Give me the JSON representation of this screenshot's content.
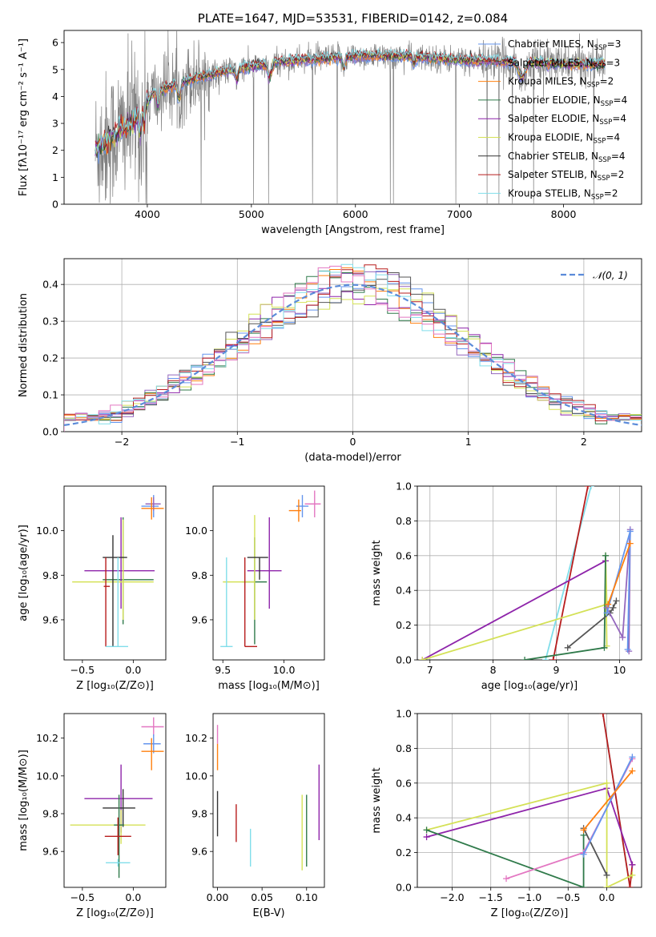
{
  "chart_data": [
    {
      "id": "spectrum",
      "type": "line",
      "title": "PLATE=1647, MJD=53531, FIBERID=0142, z=0.084",
      "xlabel": "wavelength [Angstrom, rest frame]",
      "ylabel": "Flux [fλ10⁻¹⁷ erg cm⁻² s⁻¹ A⁻¹]",
      "xlim": [
        3200,
        8750
      ],
      "ylim": [
        0,
        6.45
      ],
      "xticks": [
        "4000",
        "5000",
        "6000",
        "7000",
        "8000"
      ],
      "yticks": [
        "0",
        "1",
        "2",
        "3",
        "4",
        "5",
        "6"
      ],
      "grid": false,
      "legend_position": "top-right",
      "legend": [
        {
          "label": "Chabrier MILES, N",
          "sub": "SSP",
          "suffix": "=3",
          "color": "#6495ed"
        },
        {
          "label": "Salpeter MILES, N",
          "sub": "SSP",
          "suffix": "=3",
          "color": "#9467bd"
        },
        {
          "label": "Kroupa MILES, N",
          "sub": "SSP",
          "suffix": "=2",
          "color": "#ff7f0e"
        },
        {
          "label": "Chabrier ELODIE, N",
          "sub": "SSP",
          "suffix": "=4",
          "color": "#2f7a4a"
        },
        {
          "label": "Salpeter ELODIE, N",
          "sub": "SSP",
          "suffix": "=4",
          "color": "#8e24aa"
        },
        {
          "label": "Kroupa ELODIE, N",
          "sub": "SSP",
          "suffix": "=4",
          "color": "#d4e157"
        },
        {
          "label": "Chabrier STELIB, N",
          "sub": "SSP",
          "suffix": "=4",
          "color": "#333333"
        },
        {
          "label": "Salpeter STELIB, N",
          "sub": "SSP",
          "suffix": "=2",
          "color": "#b71c1c"
        },
        {
          "label": "Kroupa STELIB, N",
          "sub": "SSP",
          "suffix": "=2",
          "color": "#80deea"
        }
      ],
      "data_color": "#808080",
      "continuum_knots": [
        [
          3500,
          2.0
        ],
        [
          3700,
          2.6
        ],
        [
          3850,
          3.0
        ],
        [
          3950,
          3.5
        ],
        [
          4050,
          4.1
        ],
        [
          4300,
          4.5
        ],
        [
          4700,
          4.9
        ],
        [
          5000,
          5.1
        ],
        [
          5300,
          5.3
        ],
        [
          5700,
          5.4
        ],
        [
          6000,
          5.5
        ],
        [
          6500,
          5.5
        ],
        [
          7000,
          5.35
        ],
        [
          7400,
          5.3
        ],
        [
          8000,
          5.2
        ],
        [
          8400,
          5.2
        ]
      ]
    },
    {
      "id": "residuals",
      "type": "histogram",
      "xlabel": "(data-model)/error",
      "ylabel": "Normed distribution",
      "xlim": [
        -2.5,
        2.5
      ],
      "ylim": [
        0,
        0.47
      ],
      "xticks": [
        "−2",
        "−1",
        "0",
        "1",
        "2"
      ],
      "yticks": [
        "0.0",
        "0.1",
        "0.2",
        "0.3",
        "0.4"
      ],
      "grid": true,
      "legend": [
        {
          "label": "𝒩(0, 1)",
          "color": "#5b8bd9"
        }
      ],
      "bin_edges_range": [
        -2.5,
        2.5
      ],
      "n_bins": 50
    },
    {
      "id": "Z-age",
      "type": "errorbar",
      "xlabel": "Z [log₁₀(Z/Z⊙)]",
      "ylabel": "age  [log₁₀(age/yr)]",
      "xlim": [
        -0.68,
        0.32
      ],
      "ylim": [
        9.42,
        10.2
      ],
      "xticks": [
        "−0.5",
        "0.0"
      ],
      "yticks": [
        "9.6",
        "9.8",
        "10.0"
      ],
      "points": [
        {
          "color": "#6495ed",
          "x": 0.2,
          "y": 10.11,
          "xerr": [
            0.12,
            0.05
          ],
          "yerr": [
            0.05,
            0.05
          ]
        },
        {
          "color": "#9467bd",
          "x": 0.2,
          "y": 10.12,
          "xerr": [
            0.08,
            0.07
          ],
          "yerr": [
            0.03,
            0.03
          ]
        },
        {
          "color": "#ff7f0e",
          "x": 0.18,
          "y": 10.1,
          "xerr": [
            0.1,
            0.12
          ],
          "yerr": [
            0.05,
            0.05
          ]
        },
        {
          "color": "#2f7a4a",
          "x": -0.1,
          "y": 9.78,
          "xerr": [
            0.2,
            0.3
          ],
          "yerr": [
            0.2,
            0.28
          ]
        },
        {
          "color": "#8e24aa",
          "x": -0.12,
          "y": 9.82,
          "xerr": [
            0.36,
            0.33
          ],
          "yerr": [
            0.17,
            0.24
          ]
        },
        {
          "color": "#d4e157",
          "x": -0.1,
          "y": 9.77,
          "xerr": [
            0.5,
            0.3
          ],
          "yerr": [
            0.17,
            0.28
          ]
        },
        {
          "color": "#333333",
          "x": -0.2,
          "y": 9.88,
          "xerr": [
            0.1,
            0.14
          ],
          "yerr": [
            0.4,
            0.1
          ]
        },
        {
          "color": "#b71c1c",
          "x": -0.27,
          "y": 9.75,
          "xerr": [
            0.02,
            0.04
          ],
          "yerr": [
            0.27,
            0.13
          ]
        },
        {
          "color": "#80deea",
          "x": -0.15,
          "y": 9.48,
          "xerr": [
            0.12,
            0.1
          ],
          "yerr": [
            0.0,
            0.4
          ]
        }
      ]
    },
    {
      "id": "mass-age",
      "type": "errorbar",
      "xlabel": "mass [log₁₀(M/M⊙)]",
      "ylabel": "",
      "xlim": [
        9.42,
        10.33
      ],
      "ylim": [
        9.42,
        10.2
      ],
      "xticks": [
        "9.5",
        "10.0"
      ],
      "yticks": [
        "9.6",
        "9.8",
        "10.0"
      ],
      "points": [
        {
          "color": "#6495ed",
          "x": 10.15,
          "y": 10.11,
          "xerr": [
            0.05,
            0.05
          ],
          "yerr": [
            0.05,
            0.05
          ]
        },
        {
          "color": "#e377c2",
          "x": 10.25,
          "y": 10.12,
          "xerr": [
            0.08,
            0.05
          ],
          "yerr": [
            0.06,
            0.06
          ]
        },
        {
          "color": "#ff7f0e",
          "x": 10.12,
          "y": 10.09,
          "xerr": [
            0.08,
            0.02
          ],
          "yerr": [
            0.05,
            0.05
          ]
        },
        {
          "color": "#2f7a4a",
          "x": 9.76,
          "y": 9.77,
          "xerr": [
            0.1,
            0.1
          ],
          "yerr": [
            0.28,
            0.2
          ]
        },
        {
          "color": "#8e24aa",
          "x": 9.88,
          "y": 9.82,
          "xerr": [
            0.18,
            0.1
          ],
          "yerr": [
            0.17,
            0.24
          ]
        },
        {
          "color": "#d4e157",
          "x": 9.76,
          "y": 9.77,
          "xerr": [
            0.26,
            0.0
          ],
          "yerr": [
            0.17,
            0.3
          ]
        },
        {
          "color": "#333333",
          "x": 9.8,
          "y": 9.88,
          "xerr": [
            0.1,
            0.07
          ],
          "yerr": [
            0.1,
            0.0
          ]
        },
        {
          "color": "#b71c1c",
          "x": 9.68,
          "y": 9.48,
          "xerr": [
            0.0,
            0.1
          ],
          "yerr": [
            0.0,
            0.4
          ]
        },
        {
          "color": "#80deea",
          "x": 9.53,
          "y": 9.48,
          "xerr": [
            0.05,
            0.05
          ],
          "yerr": [
            0.0,
            0.4
          ]
        }
      ]
    },
    {
      "id": "age-weight",
      "type": "line",
      "xlabel": "age  [log₁₀(age/yr)]",
      "ylabel": "mass weight",
      "xlim": [
        6.8,
        10.35
      ],
      "ylim": [
        0,
        1.0
      ],
      "xticks": [
        "7",
        "8",
        "9",
        "10"
      ],
      "yticks": [
        "0.0",
        "0.2",
        "0.4",
        "0.6",
        "0.8",
        "1.0"
      ],
      "grid": true,
      "series": [
        {
          "color": "#80deea",
          "points": [
            [
              8.83,
              0.0
            ],
            [
              9.55,
              1.0
            ]
          ]
        },
        {
          "color": "#b71c1c",
          "points": [
            [
              8.95,
              0.0
            ],
            [
              9.5,
              1.0
            ]
          ]
        },
        {
          "color": "#8e24aa",
          "points": [
            [
              6.88,
              0.0
            ],
            [
              9.78,
              0.57
            ]
          ]
        },
        {
          "color": "#d4e157",
          "points": [
            [
              6.88,
              0.0
            ],
            [
              9.8,
              0.32
            ],
            [
              9.78,
              0.6
            ],
            [
              9.8,
              0.08
            ]
          ]
        },
        {
          "color": "#2f7a4a",
          "points": [
            [
              8.5,
              0.0
            ],
            [
              9.76,
              0.07
            ],
            [
              9.78,
              0.6
            ]
          ]
        },
        {
          "color": "#555555",
          "points": [
            [
              9.18,
              0.07
            ],
            [
              9.85,
              0.27
            ],
            [
              9.9,
              0.3
            ],
            [
              9.95,
              0.34
            ]
          ]
        },
        {
          "color": "#9467bd",
          "points": [
            [
              9.8,
              0.3
            ],
            [
              10.05,
              0.13
            ],
            [
              10.17,
              0.75
            ],
            [
              10.15,
              0.05
            ]
          ]
        },
        {
          "color": "#6495ed",
          "points": [
            [
              9.8,
              0.27
            ],
            [
              10.17,
              0.74
            ],
            [
              10.13,
              0.06
            ]
          ]
        },
        {
          "color": "#ff7f0e",
          "points": [
            [
              9.82,
              0.32
            ],
            [
              10.17,
              0.67
            ]
          ]
        }
      ]
    },
    {
      "id": "Z-mass",
      "type": "errorbar",
      "xlabel": "Z [log₁₀(Z/Z⊙)]",
      "ylabel": "mass [log₁₀(M/M⊙)]",
      "xlim": [
        -0.68,
        0.32
      ],
      "ylim": [
        9.41,
        10.33
      ],
      "xticks": [
        "−0.5",
        "0.0"
      ],
      "yticks": [
        "9.6",
        "9.8",
        "10.0",
        "10.2"
      ],
      "points": [
        {
          "color": "#e377c2",
          "x": 0.2,
          "y": 10.26,
          "xerr": [
            0.12,
            0.1
          ],
          "yerr": [
            0.05,
            0.05
          ]
        },
        {
          "color": "#6495ed",
          "x": 0.2,
          "y": 10.17,
          "xerr": [
            0.1,
            0.07
          ],
          "yerr": [
            0.05,
            0.05
          ]
        },
        {
          "color": "#ff7f0e",
          "x": 0.18,
          "y": 10.13,
          "xerr": [
            0.1,
            0.12
          ],
          "yerr": [
            0.1,
            0.07
          ]
        },
        {
          "color": "#8e24aa",
          "x": -0.12,
          "y": 9.88,
          "xerr": [
            0.36,
            0.31
          ],
          "yerr": [
            0.18,
            0.18
          ]
        },
        {
          "color": "#333333",
          "x": -0.1,
          "y": 9.83,
          "xerr": [
            0.2,
            0.12
          ],
          "yerr": [
            0.1,
            0.1
          ]
        },
        {
          "color": "#d4e157",
          "x": -0.12,
          "y": 9.74,
          "xerr": [
            0.5,
            0.24
          ],
          "yerr": [
            0.1,
            0.08
          ]
        },
        {
          "color": "#2f7a4a",
          "x": -0.14,
          "y": 9.74,
          "xerr": [
            0.05,
            0.05
          ],
          "yerr": [
            0.28,
            0.16
          ]
        },
        {
          "color": "#b71c1c",
          "x": -0.15,
          "y": 9.68,
          "xerr": [
            0.13,
            0.13
          ],
          "yerr": [
            0.1,
            0.1
          ]
        },
        {
          "color": "#80deea",
          "x": -0.15,
          "y": 9.54,
          "xerr": [
            0.12,
            0.12
          ],
          "yerr": [
            0.02,
            0.02
          ]
        }
      ]
    },
    {
      "id": "ebv-mass",
      "type": "errorbar",
      "xlabel": "E(B-V)",
      "ylabel": "",
      "xlim": [
        -0.005,
        0.12
      ],
      "ylim": [
        9.41,
        10.33
      ],
      "xticks": [
        "0.00",
        "0.05",
        "0.10"
      ],
      "yticks": [
        "9.6",
        "9.8",
        "10.0",
        "10.2"
      ],
      "points": [
        {
          "color": "#e377c2",
          "x": 0.0,
          "y": 10.22,
          "xerr": [
            0,
            0
          ],
          "yerr": [
            0.05,
            0.05
          ]
        },
        {
          "color": "#ff7f0e",
          "x": 0.0,
          "y": 10.1,
          "xerr": [
            0,
            0
          ],
          "yerr": [
            0.07,
            0.07
          ]
        },
        {
          "color": "#333333",
          "x": 0.0,
          "y": 9.8,
          "xerr": [
            0,
            0
          ],
          "yerr": [
            0.12,
            0.12
          ]
        },
        {
          "color": "#b71c1c",
          "x": 0.021,
          "y": 9.75,
          "xerr": [
            0,
            0
          ],
          "yerr": [
            0.1,
            0.1
          ]
        },
        {
          "color": "#80deea",
          "x": 0.037,
          "y": 9.62,
          "xerr": [
            0,
            0
          ],
          "yerr": [
            0.1,
            0.1
          ]
        },
        {
          "color": "#d4e157",
          "x": 0.095,
          "y": 9.7,
          "xerr": [
            0,
            0
          ],
          "yerr": [
            0.2,
            0.2
          ]
        },
        {
          "color": "#2f7a4a",
          "x": 0.1,
          "y": 9.7,
          "xerr": [
            0,
            0
          ],
          "yerr": [
            0.18,
            0.2
          ]
        },
        {
          "color": "#8e24aa",
          "x": 0.114,
          "y": 9.86,
          "xerr": [
            0,
            0
          ],
          "yerr": [
            0.2,
            0.2
          ]
        }
      ]
    },
    {
      "id": "Z-weight",
      "type": "line",
      "xlabel": "Z [log₁₀(Z/Z⊙)]",
      "ylabel": "mass weight",
      "xlim": [
        -2.45,
        0.45
      ],
      "ylim": [
        0,
        1.0
      ],
      "xticks": [
        "−2.0",
        "−1.5",
        "−1.0",
        "−0.5",
        "0.0"
      ],
      "yticks": [
        "0.0",
        "0.2",
        "0.4",
        "0.6",
        "0.8",
        "1.0"
      ],
      "grid": true,
      "series": [
        {
          "color": "#80deea",
          "points": [
            [
              -0.05,
              1.0
            ],
            [
              0.3,
              0.0
            ]
          ]
        },
        {
          "color": "#b71c1c",
          "points": [
            [
              -0.05,
              1.0
            ],
            [
              0.3,
              0.0
            ],
            [
              0.33,
              0.13
            ]
          ]
        },
        {
          "color": "#8e24aa",
          "points": [
            [
              -2.33,
              0.29
            ],
            [
              0.0,
              0.57
            ],
            [
              0.33,
              0.13
            ]
          ]
        },
        {
          "color": "#d4e157",
          "points": [
            [
              -2.33,
              0.33
            ],
            [
              0.0,
              0.6
            ],
            [
              0.0,
              0.0
            ],
            [
              0.33,
              0.07
            ]
          ]
        },
        {
          "color": "#2f7a4a",
          "points": [
            [
              -2.33,
              0.33
            ],
            [
              -0.3,
              0.0
            ],
            [
              -0.3,
              0.3
            ]
          ]
        },
        {
          "color": "#555555",
          "points": [
            [
              -0.3,
              0.34
            ],
            [
              0.0,
              0.07
            ]
          ]
        },
        {
          "color": "#e377c2",
          "points": [
            [
              -1.3,
              0.05
            ],
            [
              -0.3,
              0.2
            ],
            [
              0.33,
              0.74
            ]
          ]
        },
        {
          "color": "#6495ed",
          "points": [
            [
              -0.3,
              0.19
            ],
            [
              0.33,
              0.75
            ]
          ]
        },
        {
          "color": "#ff7f0e",
          "points": [
            [
              -0.3,
              0.33
            ],
            [
              0.33,
              0.67
            ]
          ]
        }
      ]
    }
  ]
}
